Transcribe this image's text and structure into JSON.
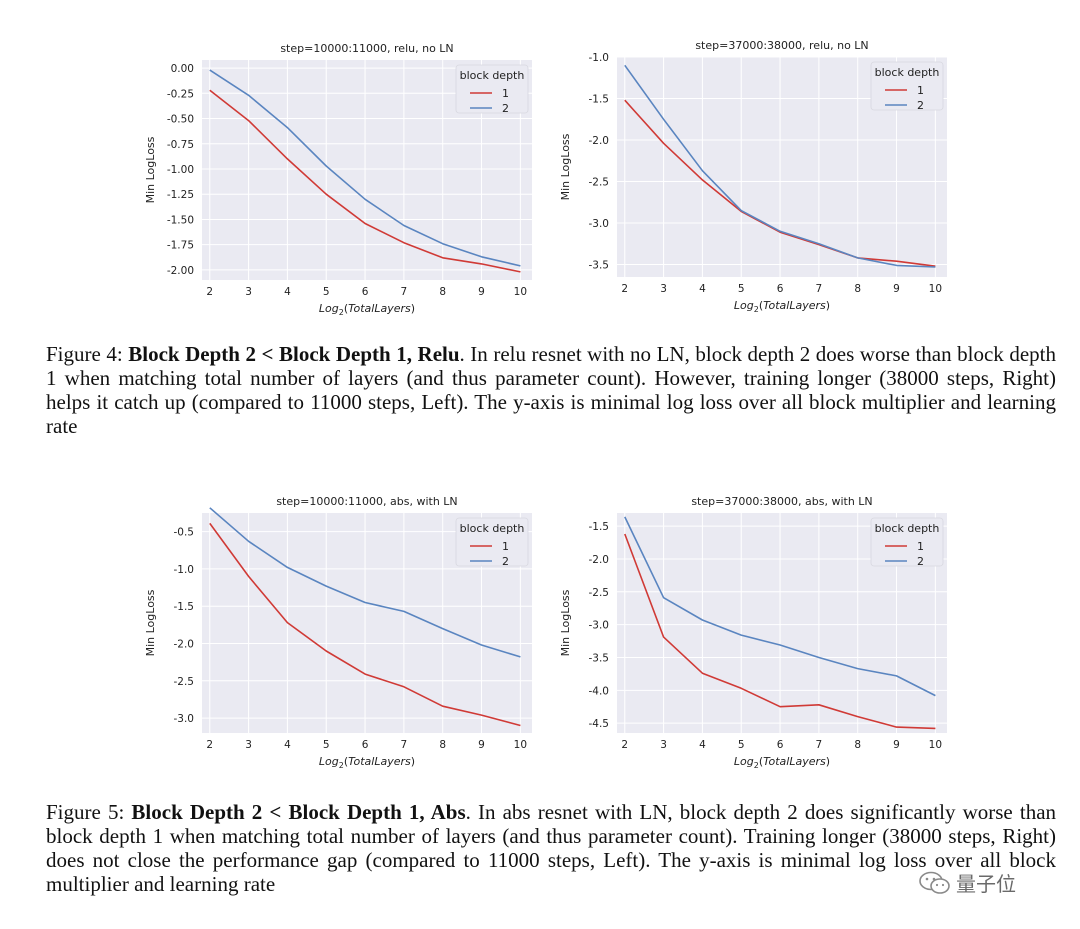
{
  "colors": {
    "series1": "#d03a36",
    "series2": "#5a85c0",
    "plot_bg": "#eaeaf2",
    "grid": "#ffffff"
  },
  "chart_data": [
    {
      "id": "fig4_left",
      "type": "line",
      "title": "step=10000:11000, relu, no LN",
      "xlabel": "Log2(TotalLayers)",
      "ylabel": "Min LogLoss",
      "x": [
        2,
        3,
        4,
        5,
        6,
        7,
        8,
        9,
        10
      ],
      "xlim": [
        1.8,
        10.3
      ],
      "ylim": [
        -2.1,
        0.08
      ],
      "yticks": [
        0.0,
        -0.25,
        -0.5,
        -0.75,
        -1.0,
        -1.25,
        -1.5,
        -1.75,
        -2.0
      ],
      "ytick_labels": [
        "0.00",
        "-0.25",
        "-0.50",
        "-0.75",
        "-1.00",
        "-1.25",
        "-1.50",
        "-1.75",
        "-2.00"
      ],
      "legend_title": "block depth",
      "legend_position": "top-right",
      "series": [
        {
          "name": "1",
          "values": [
            -0.22,
            -0.52,
            -0.9,
            -1.25,
            -1.54,
            -1.73,
            -1.88,
            -1.94,
            -2.02
          ]
        },
        {
          "name": "2",
          "values": [
            -0.02,
            -0.27,
            -0.59,
            -0.97,
            -1.3,
            -1.56,
            -1.74,
            -1.87,
            -1.96
          ]
        }
      ]
    },
    {
      "id": "fig4_right",
      "type": "line",
      "title": "step=37000:38000, relu, no LN",
      "xlabel": "Log2(TotalLayers)",
      "ylabel": "Min LogLoss",
      "x": [
        2,
        3,
        4,
        5,
        6,
        7,
        8,
        9,
        10
      ],
      "xlim": [
        1.8,
        10.3
      ],
      "ylim": [
        -3.65,
        -1.0
      ],
      "yticks": [
        -1.0,
        -1.5,
        -2.0,
        -2.5,
        -3.0,
        -3.5
      ],
      "ytick_labels": [
        "-1.0",
        "-1.5",
        "-2.0",
        "-2.5",
        "-3.0",
        "-3.5"
      ],
      "legend_title": "block depth",
      "legend_position": "top-right",
      "series": [
        {
          "name": "1",
          "values": [
            -1.52,
            -2.04,
            -2.48,
            -2.86,
            -3.11,
            -3.26,
            -3.42,
            -3.46,
            -3.52
          ]
        },
        {
          "name": "2",
          "values": [
            -1.1,
            -1.75,
            -2.37,
            -2.85,
            -3.1,
            -3.25,
            -3.42,
            -3.51,
            -3.53
          ]
        }
      ]
    },
    {
      "id": "fig5_left",
      "type": "line",
      "title": "step=10000:11000, abs, with LN",
      "xlabel": "Log2(TotalLayers)",
      "ylabel": "Min LogLoss",
      "x": [
        2,
        3,
        4,
        5,
        6,
        7,
        8,
        9,
        10
      ],
      "xlim": [
        1.8,
        10.3
      ],
      "ylim": [
        -3.2,
        -0.25
      ],
      "yticks": [
        -0.5,
        -1.0,
        -1.5,
        -2.0,
        -2.5,
        -3.0
      ],
      "ytick_labels": [
        "-0.5",
        "-1.0",
        "-1.5",
        "-2.0",
        "-2.5",
        "-3.0"
      ],
      "legend_title": "block depth",
      "legend_position": "top-right",
      "series": [
        {
          "name": "1",
          "values": [
            -0.39,
            -1.1,
            -1.72,
            -2.1,
            -2.41,
            -2.58,
            -2.84,
            -2.96,
            -3.1
          ]
        },
        {
          "name": "2",
          "values": [
            -0.18,
            -0.63,
            -0.98,
            -1.23,
            -1.45,
            -1.57,
            -1.8,
            -2.02,
            -2.18
          ]
        }
      ]
    },
    {
      "id": "fig5_right",
      "type": "line",
      "title": "step=37000:38000, abs, with LN",
      "xlabel": "Log2(TotalLayers)",
      "ylabel": "Min LogLoss",
      "x": [
        2,
        3,
        4,
        5,
        6,
        7,
        8,
        9,
        10
      ],
      "xlim": [
        1.8,
        10.3
      ],
      "ylim": [
        -4.65,
        -1.3
      ],
      "yticks": [
        -1.5,
        -2.0,
        -2.5,
        -3.0,
        -3.5,
        -4.0,
        -4.5
      ],
      "ytick_labels": [
        "-1.5",
        "-2.0",
        "-2.5",
        "-3.0",
        "-3.5",
        "-4.0",
        "-4.5"
      ],
      "legend_title": "block depth",
      "legend_position": "top-right",
      "series": [
        {
          "name": "1",
          "values": [
            -1.62,
            -3.19,
            -3.74,
            -3.97,
            -4.25,
            -4.22,
            -4.4,
            -4.56,
            -4.58
          ]
        },
        {
          "name": "2",
          "values": [
            -1.36,
            -2.59,
            -2.93,
            -3.16,
            -3.31,
            -3.5,
            -3.67,
            -3.78,
            -4.08
          ]
        }
      ]
    }
  ],
  "figure4": {
    "label": "Figure 4:",
    "bold_title": "Block Depth 2 < Block Depth 1, Relu",
    "text": ". In relu resnet with no LN, block depth 2 does worse than block depth 1 when matching total number of layers (and thus parameter count). However, training longer (38000 steps, Right) helps it catch up (compared to 11000 steps, Left). The y-axis is minimal log loss over all block multiplier and learning rate"
  },
  "figure5": {
    "label": "Figure 5:",
    "bold_title": "Block Depth 2 < Block Depth 1, Abs",
    "text": ". In abs resnet with LN, block depth 2 does significantly worse than block depth 1 when matching total number of layers (and thus parameter count). Training longer (38000 steps, Right) does not close the performance gap (compared to 11000 steps, Left). The y-axis is minimal log loss over all block multiplier and learning rate"
  },
  "watermark": {
    "text": "量子位",
    "icon": "wechat-icon"
  }
}
